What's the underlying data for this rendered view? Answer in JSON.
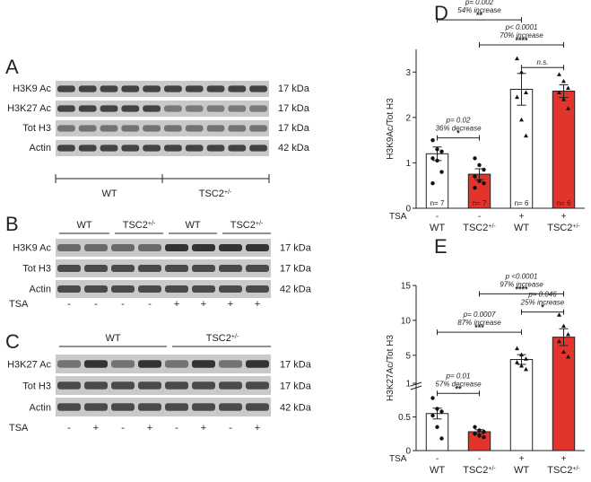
{
  "panels": {
    "A": {
      "letter": "A",
      "rows": [
        {
          "label": "H3K9 Ac",
          "kda": "17 kDa"
        },
        {
          "label": "H3K27 Ac",
          "kda": "17 kDa"
        },
        {
          "label": "Tot H3",
          "kda": "17 kDa"
        },
        {
          "label": "Actin",
          "kda": "42 kDa"
        }
      ],
      "groups": [
        "WT",
        "TSC2+/-"
      ],
      "group_base": [
        "WT",
        "TSC2"
      ],
      "group_sup": [
        "",
        "+/-"
      ]
    },
    "B": {
      "letter": "B",
      "groups": [
        "WT",
        "TSC2+/-",
        "WT",
        "TSC2+/-"
      ],
      "group_base": [
        "WT",
        "TSC2",
        "WT",
        "TSC2"
      ],
      "group_sup": [
        "",
        "+/-",
        "",
        "+/-"
      ],
      "rows": [
        {
          "label": "H3K9 Ac",
          "kda": "17 kDa"
        },
        {
          "label": "Tot H3",
          "kda": "17 kDa"
        },
        {
          "label": "Actin",
          "kda": "42 kDa"
        }
      ],
      "tsa_label": "TSA",
      "tsa": [
        "-",
        "-",
        "-",
        "-",
        "+",
        "+",
        "+",
        "+"
      ]
    },
    "C": {
      "letter": "C",
      "groups": [
        "WT",
        "TSC2+/-"
      ],
      "group_base": [
        "WT",
        "TSC2"
      ],
      "group_sup": [
        "",
        "+/-"
      ],
      "rows": [
        {
          "label": "H3K27 Ac",
          "kda": "17 kDa"
        },
        {
          "label": "Tot H3",
          "kda": "17 kDa"
        },
        {
          "label": "Actin",
          "kda": "42 kDa"
        }
      ],
      "tsa_label": "TSA",
      "tsa": [
        "-",
        "+",
        "-",
        "+",
        "-",
        "+",
        "-",
        "+"
      ]
    }
  },
  "colors": {
    "tsc2": "#e3342b",
    "wt": "#ffffff",
    "blot_bg": "#c9c9c9",
    "band": "#2b2b2b"
  },
  "chart_data": [
    {
      "panel": "D",
      "type": "bar",
      "ylabel": "H3K9Ac/Tot H3",
      "ylim": [
        0,
        3.5
      ],
      "yticks": [
        0,
        1,
        2,
        3
      ],
      "categories": [
        "WT",
        "TSC2+/-",
        "WT",
        "TSC2+/-"
      ],
      "category_base": [
        "WT",
        "TSC2",
        "WT",
        "TSC2"
      ],
      "category_sup": [
        "",
        "+/-",
        "",
        "+/-"
      ],
      "tsa_label": "TSA",
      "tsa": [
        "-",
        "-",
        "+",
        "+"
      ],
      "values": [
        1.2,
        0.75,
        2.62,
        2.58
      ],
      "errors": [
        0.15,
        0.12,
        0.35,
        0.14
      ],
      "n_labels": [
        "n= 7",
        "n= 7",
        "n= 6",
        "n= 6"
      ],
      "points": [
        [
          1.5,
          1.3,
          1.25,
          1.1,
          1.05,
          0.8,
          0.55
        ],
        [
          1.1,
          0.95,
          0.85,
          0.7,
          0.6,
          0.55,
          0.45
        ],
        [
          3.3,
          3.0,
          2.55,
          2.45,
          1.95,
          1.6
        ],
        [
          2.95,
          2.8,
          2.65,
          2.55,
          2.4,
          2.2
        ]
      ],
      "comparisons": [
        {
          "from": 0,
          "to": 1,
          "y": 1.55,
          "star": "*",
          "text": [
            "p= 0.02",
            "36% decrease"
          ]
        },
        {
          "from": 0,
          "to": 2,
          "y": 4.15,
          "star": "**",
          "text": [
            "p= 0.002",
            "54% increase"
          ]
        },
        {
          "from": 1,
          "to": 3,
          "y": 3.6,
          "star": "****",
          "text": [
            "p< 0.0001",
            "70% increase"
          ]
        },
        {
          "from": 2,
          "to": 3,
          "y": 3.1,
          "star": "n.s.",
          "text": []
        }
      ]
    },
    {
      "panel": "E",
      "type": "bar",
      "ylabel": "H3K27Ac/Tot H3",
      "ylim_lower": [
        0,
        1
      ],
      "ylim_upper": [
        1,
        15
      ],
      "yticks": [
        0,
        0.5,
        1,
        5,
        10,
        15
      ],
      "categories": [
        "WT",
        "TSC2+/-",
        "WT",
        "TSC2+/-"
      ],
      "category_base": [
        "WT",
        "TSC2",
        "WT",
        "TSC2"
      ],
      "category_sup": [
        "",
        "+/-",
        "",
        "+/-"
      ],
      "tsa_label": "TSA",
      "tsa": [
        "-",
        "-",
        "+",
        "+"
      ],
      "values": [
        0.55,
        0.28,
        4.4,
        7.6
      ],
      "errors": [
        0.08,
        0.03,
        0.7,
        1.2
      ],
      "points": [
        [
          0.78,
          0.62,
          0.58,
          0.52,
          0.35,
          0.18
        ],
        [
          0.35,
          0.3,
          0.28,
          0.25,
          0.22,
          0.2
        ],
        [
          6.0,
          5.1,
          4.5,
          4.0,
          3.5,
          3.0
        ],
        [
          10.8,
          9.2,
          8.0,
          7.0,
          5.5,
          4.8
        ]
      ],
      "comparisons": [
        {
          "from": 0,
          "to": 1,
          "y": 0.85,
          "star": "**",
          "text": [
            "p= 0.01",
            "57% decrease"
          ]
        },
        {
          "from": 0,
          "to": 2,
          "y": 8.3,
          "star": "***",
          "text": [
            "p= 0.0007",
            "87% increase"
          ]
        },
        {
          "from": 1,
          "to": 3,
          "y": 13.8,
          "star": "****",
          "text": [
            "p <0.0001",
            "97% increase"
          ]
        },
        {
          "from": 2,
          "to": 3,
          "y": 11.2,
          "star": "*",
          "text": [
            "p= 0.046",
            "25% increase"
          ]
        }
      ]
    }
  ]
}
